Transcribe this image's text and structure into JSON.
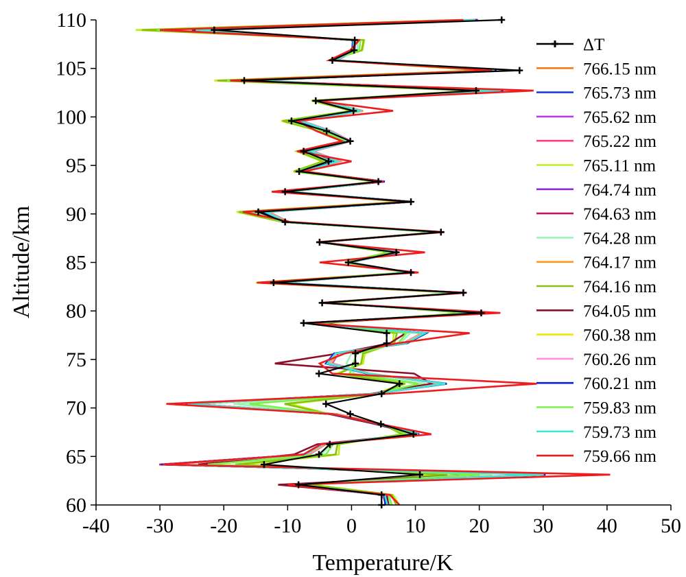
{
  "chart_data": {
    "type": "line",
    "title": "",
    "xlabel": "Temperature/K",
    "ylabel": "Altitude/km",
    "xlim": [
      -40,
      50
    ],
    "ylim": [
      60,
      110
    ],
    "xticks": [
      -40,
      -30,
      -20,
      -10,
      0,
      10,
      20,
      30,
      40,
      50
    ],
    "yticks": [
      60,
      65,
      70,
      75,
      80,
      85,
      90,
      95,
      100,
      105,
      110
    ],
    "grid": false,
    "legend": "right",
    "series": [
      {
        "name": "ΔT",
        "color": "#000000",
        "marker": "plus",
        "x": [
          4.7,
          4.7,
          -8.3,
          10.7,
          -13.7,
          -5.1,
          -3.4,
          9.7,
          4.6,
          -0.2,
          -4.0,
          4.7,
          7.5,
          -5.1,
          0.6,
          0.6,
          5.5,
          5.5,
          -7.5,
          20.3,
          -4.6,
          17.5,
          -12.2,
          9.3,
          -0.5,
          7.0,
          -5.0,
          14.0,
          -10.4,
          -14.6,
          9.3,
          -10.4,
          4.2,
          -8.2,
          -3.6,
          -7.5,
          -0.2,
          -3.9,
          -9.4,
          0.3,
          -5.6,
          19.5,
          -16.8,
          26.3,
          -3.0,
          0.4,
          0.5,
          -21.5,
          23.5
        ]
      },
      {
        "name": "766.15 nm",
        "color": "#FF7518",
        "x": [
          5.4,
          5.0,
          -7.9,
          29.6,
          -29.3,
          -7.0,
          -4.4,
          10.2,
          4.5,
          -2.7,
          -25.3,
          3.7,
          14.3,
          2.7,
          -3.4,
          -2.4,
          8.3,
          11.3,
          -6.5,
          20.1,
          -4.1,
          16.9,
          -11.1,
          8.8,
          -0.2,
          7.1,
          -4.8,
          13.6,
          -10.1,
          -13.3,
          9.2,
          -10.0,
          4.9,
          -7.4,
          -2.1,
          -6.2,
          -0.3,
          -3.4,
          -7.9,
          1.6,
          -5.0,
          23.1,
          -15.3,
          22.1,
          -2.4,
          0.3,
          0.4,
          -24.0,
          19.1
        ]
      },
      {
        "name": "765.73 nm",
        "color": "#1F3DE0",
        "x": [
          5.3,
          5.1,
          -8.6,
          30.2,
          -29.6,
          -7.4,
          -4.7,
          10.5,
          4.3,
          -3.2,
          -25.8,
          3.5,
          14.8,
          2.5,
          -3.9,
          -2.6,
          8.6,
          11.6,
          -6.8,
          20.6,
          -4.3,
          17.3,
          -11.4,
          9.0,
          -0.4,
          7.3,
          -5.0,
          13.9,
          -10.3,
          -13.6,
          9.4,
          -10.2,
          5.1,
          -7.6,
          -2.3,
          -6.4,
          -0.4,
          -3.6,
          -8.1,
          1.5,
          -5.2,
          23.6,
          -15.7,
          22.6,
          -2.6,
          0.2,
          0.3,
          -24.5,
          19.6
        ]
      },
      {
        "name": "765.62 nm",
        "color": "#B23CF0",
        "x": [
          5.5,
          4.8,
          -9.5,
          29.1,
          -28.7,
          -6.6,
          -4.1,
          10.0,
          4.7,
          -2.3,
          -25.0,
          3.9,
          13.9,
          2.9,
          -3.0,
          -2.1,
          8.1,
          11.0,
          -6.2,
          19.7,
          -3.9,
          16.6,
          -10.8,
          8.5,
          -0.1,
          6.9,
          -4.6,
          13.3,
          -9.8,
          -13.0,
          9.0,
          -9.7,
          4.7,
          -7.1,
          -1.8,
          -6.0,
          -0.1,
          -3.2,
          -7.7,
          1.8,
          -4.8,
          22.7,
          -15.0,
          21.7,
          -2.2,
          0.5,
          0.6,
          -23.6,
          18.7
        ]
      },
      {
        "name": "765.22 nm",
        "color": "#FF3C7D",
        "x": [
          5.6,
          4.9,
          -9.9,
          29.8,
          -29.0,
          -6.8,
          -4.2,
          10.3,
          4.4,
          -2.9,
          -25.6,
          3.8,
          14.5,
          2.8,
          -3.6,
          -2.3,
          8.4,
          11.4,
          -6.6,
          20.3,
          -4.2,
          17.0,
          -11.2,
          8.9,
          -0.3,
          7.1,
          -4.9,
          13.7,
          -10.1,
          -13.4,
          9.3,
          -10.0,
          4.9,
          -7.4,
          -2.0,
          -6.3,
          -0.3,
          -3.4,
          -7.9,
          1.7,
          -5.1,
          23.3,
          -15.5,
          22.4,
          -2.4,
          0.4,
          0.4,
          -24.2,
          19.3
        ]
      },
      {
        "name": "765.11 nm",
        "color": "#BFF21A",
        "x": [
          7.5,
          6.5,
          -6.2,
          13.9,
          -17.1,
          -2.0,
          -1.9,
          7.8,
          4.9,
          -3.5,
          -9.6,
          3.9,
          7.9,
          -2.3,
          1.8,
          2.1,
          6.5,
          6.6,
          -4.2,
          17.8,
          -3.1,
          16.3,
          -15.0,
          8.6,
          -1.0,
          5.8,
          -4.9,
          13.2,
          -10.7,
          -18.0,
          8.0,
          -10.3,
          3.9,
          -9.1,
          -4.6,
          -8.6,
          -0.7,
          -5.0,
          -11.0,
          0.0,
          -6.3,
          19.0,
          -21.5,
          20.5,
          -3.4,
          1.7,
          2.0,
          -33.8,
          17.0
        ]
      },
      {
        "name": "764.74 nm",
        "color": "#8A2BE2",
        "x": [
          5.6,
          5.1,
          -10.3,
          30.0,
          -29.9,
          -7.1,
          -4.5,
          10.4,
          4.4,
          -3.0,
          -25.7,
          3.6,
          14.6,
          2.6,
          -3.7,
          -2.5,
          8.5,
          11.5,
          -6.7,
          20.4,
          -4.2,
          17.1,
          -11.3,
          8.9,
          -0.3,
          7.2,
          -4.9,
          13.8,
          -10.2,
          -13.5,
          9.3,
          -10.1,
          5.0,
          -7.5,
          -2.2,
          -6.3,
          -0.3,
          -3.5,
          -8.0,
          1.6,
          -5.1,
          23.4,
          -15.6,
          22.5,
          -2.5,
          0.3,
          0.4,
          -24.4,
          19.4
        ]
      },
      {
        "name": "764.63 nm",
        "color": "#C0145C",
        "x": [
          5.7,
          5.2,
          -10.6,
          30.4,
          -30.1,
          -7.3,
          -4.6,
          10.6,
          4.3,
          -3.1,
          -25.9,
          3.5,
          14.9,
          2.5,
          -4.0,
          -2.7,
          8.7,
          11.7,
          -6.9,
          20.7,
          -4.4,
          17.4,
          -11.5,
          9.1,
          -0.4,
          7.4,
          -5.1,
          14.0,
          -10.4,
          -13.7,
          9.5,
          -10.3,
          5.2,
          -7.7,
          -2.4,
          -6.5,
          -0.5,
          -3.7,
          -8.2,
          1.4,
          -5.3,
          23.8,
          -15.8,
          22.7,
          -2.7,
          0.2,
          0.3,
          -24.6,
          19.8
        ]
      },
      {
        "name": "764.28 nm",
        "color": "#9CF5B8",
        "x": [
          6.0,
          5.5,
          -8.8,
          22.0,
          -24.0,
          -4.8,
          -3.1,
          9.0,
          4.7,
          -2.6,
          -18.5,
          3.8,
          11.5,
          0.4,
          -0.8,
          0.0,
          7.6,
          9.2,
          -5.6,
          19.1,
          -3.8,
          16.8,
          -12.8,
          8.8,
          -0.6,
          6.6,
          -4.9,
          13.5,
          -10.4,
          -15.4,
          8.7,
          -10.1,
          4.5,
          -8.2,
          -3.2,
          -7.3,
          -0.5,
          -4.2,
          -9.2,
          1.0,
          -5.6,
          21.4,
          -18.1,
          21.6,
          -2.8,
          0.9,
          1.0,
          -28.2,
          18.2
        ]
      },
      {
        "name": "764.17 nm",
        "color": "#FF9A1C",
        "x": [
          5.5,
          4.9,
          -9.6,
          29.3,
          -28.9,
          -6.7,
          -4.2,
          10.1,
          4.6,
          -2.5,
          -25.2,
          3.9,
          14.1,
          2.9,
          -3.2,
          -2.2,
          8.2,
          11.1,
          -6.3,
          19.9,
          -4.0,
          16.7,
          -10.9,
          8.6,
          -0.1,
          7.0,
          -4.7,
          13.4,
          -9.9,
          -13.1,
          9.1,
          -9.8,
          4.8,
          -7.2,
          -1.9,
          -6.1,
          -0.2,
          -3.3,
          -7.8,
          1.8,
          -4.9,
          22.9,
          -15.2,
          21.9,
          -2.3,
          0.4,
          0.5,
          -23.8,
          18.9
        ]
      },
      {
        "name": "764.16 nm",
        "color": "#8DBF0E",
        "x": [
          7.0,
          6.3,
          -6.6,
          15.0,
          -18.2,
          -2.5,
          -2.2,
          8.0,
          4.9,
          -3.6,
          -10.5,
          4.0,
          8.4,
          -2.0,
          1.5,
          1.8,
          6.7,
          7.1,
          -4.4,
          18.1,
          -3.3,
          16.5,
          -14.7,
          8.7,
          -1.0,
          6.0,
          -5.0,
          13.3,
          -10.8,
          -17.6,
          8.2,
          -10.5,
          4.0,
          -9.0,
          -4.4,
          -8.4,
          -0.8,
          -4.9,
          -10.8,
          0.1,
          -6.2,
          19.3,
          -21.0,
          20.8,
          -3.3,
          1.6,
          1.9,
          -32.8,
          17.3
        ]
      },
      {
        "name": "764.05 nm",
        "color": "#8C0F2C",
        "x": [
          5.8,
          5.5,
          -11.5,
          20.0,
          -24.0,
          -9.0,
          -5.4,
          10.0,
          3.8,
          -3.5,
          -25.0,
          3.1,
          12.5,
          9.8,
          -12.0,
          -2.0,
          6.0,
          8.5,
          -4.8,
          20.0,
          -4.6,
          17.2,
          -12.5,
          9.0,
          -0.5,
          7.1,
          -5.2,
          13.8,
          -10.6,
          -14.2,
          9.1,
          -10.0,
          5.0,
          -8.0,
          -2.4,
          -6.6,
          -0.4,
          -3.7,
          -8.5,
          1.0,
          -5.4,
          22.5,
          -16.0,
          22.0,
          -2.7,
          0.2,
          0.3,
          -25.0,
          19.5
        ]
      },
      {
        "name": "760.38 nm",
        "color": "#F4E600",
        "x": [
          5.5,
          5.0,
          -8.5,
          29.5,
          -29.2,
          -6.9,
          -4.3,
          10.2,
          4.5,
          -2.7,
          -25.3,
          3.7,
          14.3,
          2.7,
          -3.4,
          -2.4,
          8.3,
          11.2,
          -6.5,
          20.0,
          -4.1,
          16.9,
          -11.1,
          8.8,
          -0.2,
          7.1,
          -4.8,
          13.6,
          -10.0,
          -13.3,
          9.2,
          -9.9,
          4.8,
          -7.4,
          -2.1,
          -6.2,
          -0.3,
          -3.4,
          -7.9,
          1.6,
          -5.0,
          23.0,
          -15.3,
          22.1,
          -2.4,
          0.3,
          0.4,
          -24.0,
          19.0
        ]
      },
      {
        "name": "760.26 nm",
        "color": "#FF90E0",
        "x": [
          5.4,
          5.0,
          -9.8,
          29.7,
          -29.3,
          -7.0,
          -4.4,
          10.3,
          4.5,
          -2.8,
          -25.4,
          3.7,
          14.4,
          2.7,
          -3.5,
          -2.4,
          8.4,
          11.3,
          -6.5,
          20.2,
          -4.1,
          17.0,
          -11.1,
          8.8,
          -0.2,
          7.1,
          -4.8,
          13.6,
          -10.1,
          -13.3,
          9.2,
          -10.0,
          4.9,
          -7.4,
          -2.1,
          -6.2,
          -0.3,
          -3.4,
          -7.9,
          1.6,
          -5.0,
          23.1,
          -15.3,
          22.2,
          -2.4,
          0.3,
          0.4,
          -24.1,
          19.1
        ]
      },
      {
        "name": "760.21 nm",
        "color": "#0A1FD6",
        "x": [
          5.3,
          5.1,
          -9.2,
          30.3,
          -29.8,
          -7.5,
          -4.8,
          10.6,
          4.3,
          -3.3,
          -26.0,
          3.5,
          14.9,
          2.4,
          -4.0,
          -2.7,
          8.7,
          11.7,
          -6.9,
          20.7,
          -4.4,
          17.4,
          -11.5,
          9.1,
          -0.4,
          7.4,
          -5.1,
          14.0,
          -10.4,
          -13.7,
          9.5,
          -10.3,
          5.2,
          -7.7,
          -2.4,
          -6.5,
          -0.5,
          -3.7,
          -8.2,
          1.4,
          -5.3,
          23.7,
          -15.8,
          22.7,
          -2.7,
          0.1,
          0.2,
          -24.6,
          19.7
        ]
      },
      {
        "name": "759.83 nm",
        "color": "#7CF24A",
        "x": [
          6.3,
          5.8,
          -8.1,
          20.0,
          -22.5,
          -4.0,
          -2.9,
          8.7,
          4.8,
          -3.0,
          -16.0,
          3.9,
          10.5,
          -0.3,
          0.3,
          0.8,
          7.3,
          8.6,
          -5.3,
          18.8,
          -3.6,
          16.6,
          -13.4,
          8.7,
          -0.8,
          6.4,
          -4.9,
          13.4,
          -10.6,
          -16.4,
          8.5,
          -10.3,
          4.3,
          -8.6,
          -3.8,
          -7.9,
          -0.6,
          -4.6,
          -9.9,
          0.5,
          -5.9,
          20.6,
          -19.5,
          21.1,
          -3.0,
          1.2,
          1.4,
          -30.5,
          17.7
        ]
      },
      {
        "name": "759.73 nm",
        "color": "#3FE8D0",
        "x": [
          5.6,
          5.2,
          -9.0,
          30.1,
          -29.5,
          -7.2,
          -4.6,
          10.4,
          4.4,
          -3.0,
          -25.7,
          3.6,
          14.7,
          2.6,
          -3.8,
          -2.5,
          8.5,
          11.5,
          -6.7,
          20.4,
          -4.3,
          17.2,
          -11.3,
          9.0,
          -0.3,
          7.2,
          -5.0,
          13.8,
          -10.2,
          -13.5,
          9.3,
          -10.1,
          5.0,
          -7.5,
          -2.2,
          -6.4,
          -0.4,
          -3.5,
          -8.0,
          1.5,
          -5.2,
          23.4,
          -15.6,
          22.4,
          -2.5,
          0.3,
          0.3,
          -24.4,
          19.4
        ]
      },
      {
        "name": "759.66 nm",
        "color": "#EE1C1C",
        "x": [
          7.5,
          6.0,
          -10.0,
          40.5,
          -29.5,
          -7.5,
          -4.8,
          12.5,
          4.5,
          -3.0,
          -29.0,
          5.5,
          29.0,
          -3.0,
          -5.0,
          -1.0,
          7.2,
          18.5,
          -7.5,
          23.3,
          -4.8,
          18.0,
          -14.8,
          10.5,
          -5.0,
          11.5,
          -5.5,
          14.5,
          -9.5,
          -17.0,
          9.2,
          -12.5,
          5.0,
          -7.5,
          0.0,
          -8.5,
          -1.5,
          -5.5,
          -8.5,
          6.5,
          -5.5,
          28.5,
          -19.0,
          22.0,
          -3.5,
          -0.2,
          1.2,
          -30.0,
          17.5
        ]
      }
    ]
  }
}
